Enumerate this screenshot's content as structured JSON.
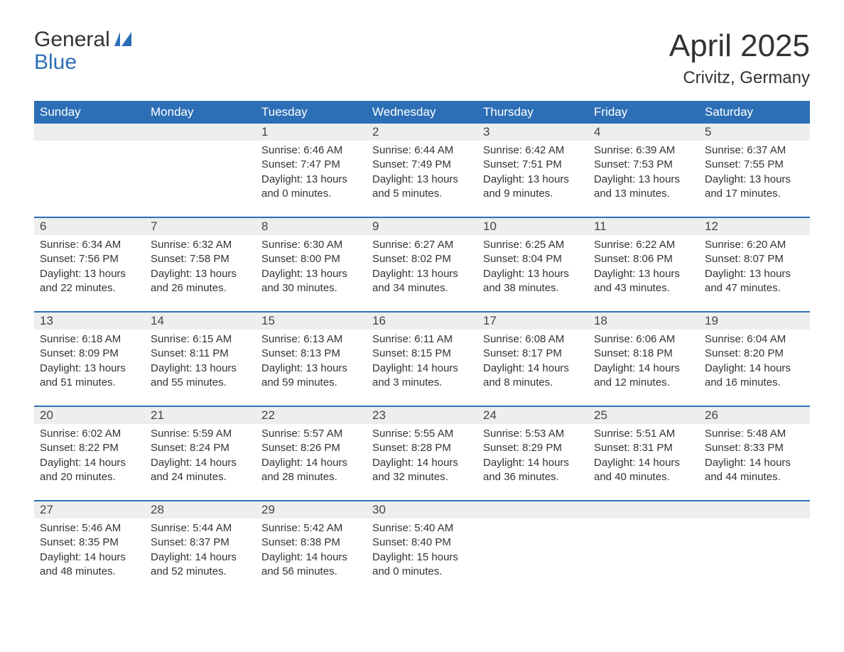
{
  "brand": {
    "word1": "General",
    "word2": "Blue"
  },
  "title": "April 2025",
  "location": "Crivitz, Germany",
  "colors": {
    "header_bg": "#2d6fb6",
    "header_text": "#ffffff",
    "daynum_bg": "#eeeeee",
    "row_divider": "#2d6fb6",
    "body_text": "#333333",
    "brand_blue": "#2d6fb6",
    "page_bg": "#ffffff"
  },
  "typography": {
    "title_fontsize": 44,
    "location_fontsize": 24,
    "header_fontsize": 17,
    "daynum_fontsize": 17,
    "detail_fontsize": 15,
    "logo_fontsize": 30
  },
  "layout": {
    "columns": 7,
    "rows": 5,
    "cell_padding_bottom": 22
  },
  "weekdays": [
    "Sunday",
    "Monday",
    "Tuesday",
    "Wednesday",
    "Thursday",
    "Friday",
    "Saturday"
  ],
  "weeks": [
    [
      {
        "day": ""
      },
      {
        "day": ""
      },
      {
        "day": "1",
        "sunrise": "6:46 AM",
        "sunset": "7:47 PM",
        "dl1": "Daylight: 13 hours",
        "dl2": "and 0 minutes."
      },
      {
        "day": "2",
        "sunrise": "6:44 AM",
        "sunset": "7:49 PM",
        "dl1": "Daylight: 13 hours",
        "dl2": "and 5 minutes."
      },
      {
        "day": "3",
        "sunrise": "6:42 AM",
        "sunset": "7:51 PM",
        "dl1": "Daylight: 13 hours",
        "dl2": "and 9 minutes."
      },
      {
        "day": "4",
        "sunrise": "6:39 AM",
        "sunset": "7:53 PM",
        "dl1": "Daylight: 13 hours",
        "dl2": "and 13 minutes."
      },
      {
        "day": "5",
        "sunrise": "6:37 AM",
        "sunset": "7:55 PM",
        "dl1": "Daylight: 13 hours",
        "dl2": "and 17 minutes."
      }
    ],
    [
      {
        "day": "6",
        "sunrise": "6:34 AM",
        "sunset": "7:56 PM",
        "dl1": "Daylight: 13 hours",
        "dl2": "and 22 minutes."
      },
      {
        "day": "7",
        "sunrise": "6:32 AM",
        "sunset": "7:58 PM",
        "dl1": "Daylight: 13 hours",
        "dl2": "and 26 minutes."
      },
      {
        "day": "8",
        "sunrise": "6:30 AM",
        "sunset": "8:00 PM",
        "dl1": "Daylight: 13 hours",
        "dl2": "and 30 minutes."
      },
      {
        "day": "9",
        "sunrise": "6:27 AM",
        "sunset": "8:02 PM",
        "dl1": "Daylight: 13 hours",
        "dl2": "and 34 minutes."
      },
      {
        "day": "10",
        "sunrise": "6:25 AM",
        "sunset": "8:04 PM",
        "dl1": "Daylight: 13 hours",
        "dl2": "and 38 minutes."
      },
      {
        "day": "11",
        "sunrise": "6:22 AM",
        "sunset": "8:06 PM",
        "dl1": "Daylight: 13 hours",
        "dl2": "and 43 minutes."
      },
      {
        "day": "12",
        "sunrise": "6:20 AM",
        "sunset": "8:07 PM",
        "dl1": "Daylight: 13 hours",
        "dl2": "and 47 minutes."
      }
    ],
    [
      {
        "day": "13",
        "sunrise": "6:18 AM",
        "sunset": "8:09 PM",
        "dl1": "Daylight: 13 hours",
        "dl2": "and 51 minutes."
      },
      {
        "day": "14",
        "sunrise": "6:15 AM",
        "sunset": "8:11 PM",
        "dl1": "Daylight: 13 hours",
        "dl2": "and 55 minutes."
      },
      {
        "day": "15",
        "sunrise": "6:13 AM",
        "sunset": "8:13 PM",
        "dl1": "Daylight: 13 hours",
        "dl2": "and 59 minutes."
      },
      {
        "day": "16",
        "sunrise": "6:11 AM",
        "sunset": "8:15 PM",
        "dl1": "Daylight: 14 hours",
        "dl2": "and 3 minutes."
      },
      {
        "day": "17",
        "sunrise": "6:08 AM",
        "sunset": "8:17 PM",
        "dl1": "Daylight: 14 hours",
        "dl2": "and 8 minutes."
      },
      {
        "day": "18",
        "sunrise": "6:06 AM",
        "sunset": "8:18 PM",
        "dl1": "Daylight: 14 hours",
        "dl2": "and 12 minutes."
      },
      {
        "day": "19",
        "sunrise": "6:04 AM",
        "sunset": "8:20 PM",
        "dl1": "Daylight: 14 hours",
        "dl2": "and 16 minutes."
      }
    ],
    [
      {
        "day": "20",
        "sunrise": "6:02 AM",
        "sunset": "8:22 PM",
        "dl1": "Daylight: 14 hours",
        "dl2": "and 20 minutes."
      },
      {
        "day": "21",
        "sunrise": "5:59 AM",
        "sunset": "8:24 PM",
        "dl1": "Daylight: 14 hours",
        "dl2": "and 24 minutes."
      },
      {
        "day": "22",
        "sunrise": "5:57 AM",
        "sunset": "8:26 PM",
        "dl1": "Daylight: 14 hours",
        "dl2": "and 28 minutes."
      },
      {
        "day": "23",
        "sunrise": "5:55 AM",
        "sunset": "8:28 PM",
        "dl1": "Daylight: 14 hours",
        "dl2": "and 32 minutes."
      },
      {
        "day": "24",
        "sunrise": "5:53 AM",
        "sunset": "8:29 PM",
        "dl1": "Daylight: 14 hours",
        "dl2": "and 36 minutes."
      },
      {
        "day": "25",
        "sunrise": "5:51 AM",
        "sunset": "8:31 PM",
        "dl1": "Daylight: 14 hours",
        "dl2": "and 40 minutes."
      },
      {
        "day": "26",
        "sunrise": "5:48 AM",
        "sunset": "8:33 PM",
        "dl1": "Daylight: 14 hours",
        "dl2": "and 44 minutes."
      }
    ],
    [
      {
        "day": "27",
        "sunrise": "5:46 AM",
        "sunset": "8:35 PM",
        "dl1": "Daylight: 14 hours",
        "dl2": "and 48 minutes."
      },
      {
        "day": "28",
        "sunrise": "5:44 AM",
        "sunset": "8:37 PM",
        "dl1": "Daylight: 14 hours",
        "dl2": "and 52 minutes."
      },
      {
        "day": "29",
        "sunrise": "5:42 AM",
        "sunset": "8:38 PM",
        "dl1": "Daylight: 14 hours",
        "dl2": "and 56 minutes."
      },
      {
        "day": "30",
        "sunrise": "5:40 AM",
        "sunset": "8:40 PM",
        "dl1": "Daylight: 15 hours",
        "dl2": "and 0 minutes."
      },
      {
        "day": ""
      },
      {
        "day": ""
      },
      {
        "day": ""
      }
    ]
  ],
  "labels": {
    "sunrise_prefix": "Sunrise: ",
    "sunset_prefix": "Sunset: "
  }
}
